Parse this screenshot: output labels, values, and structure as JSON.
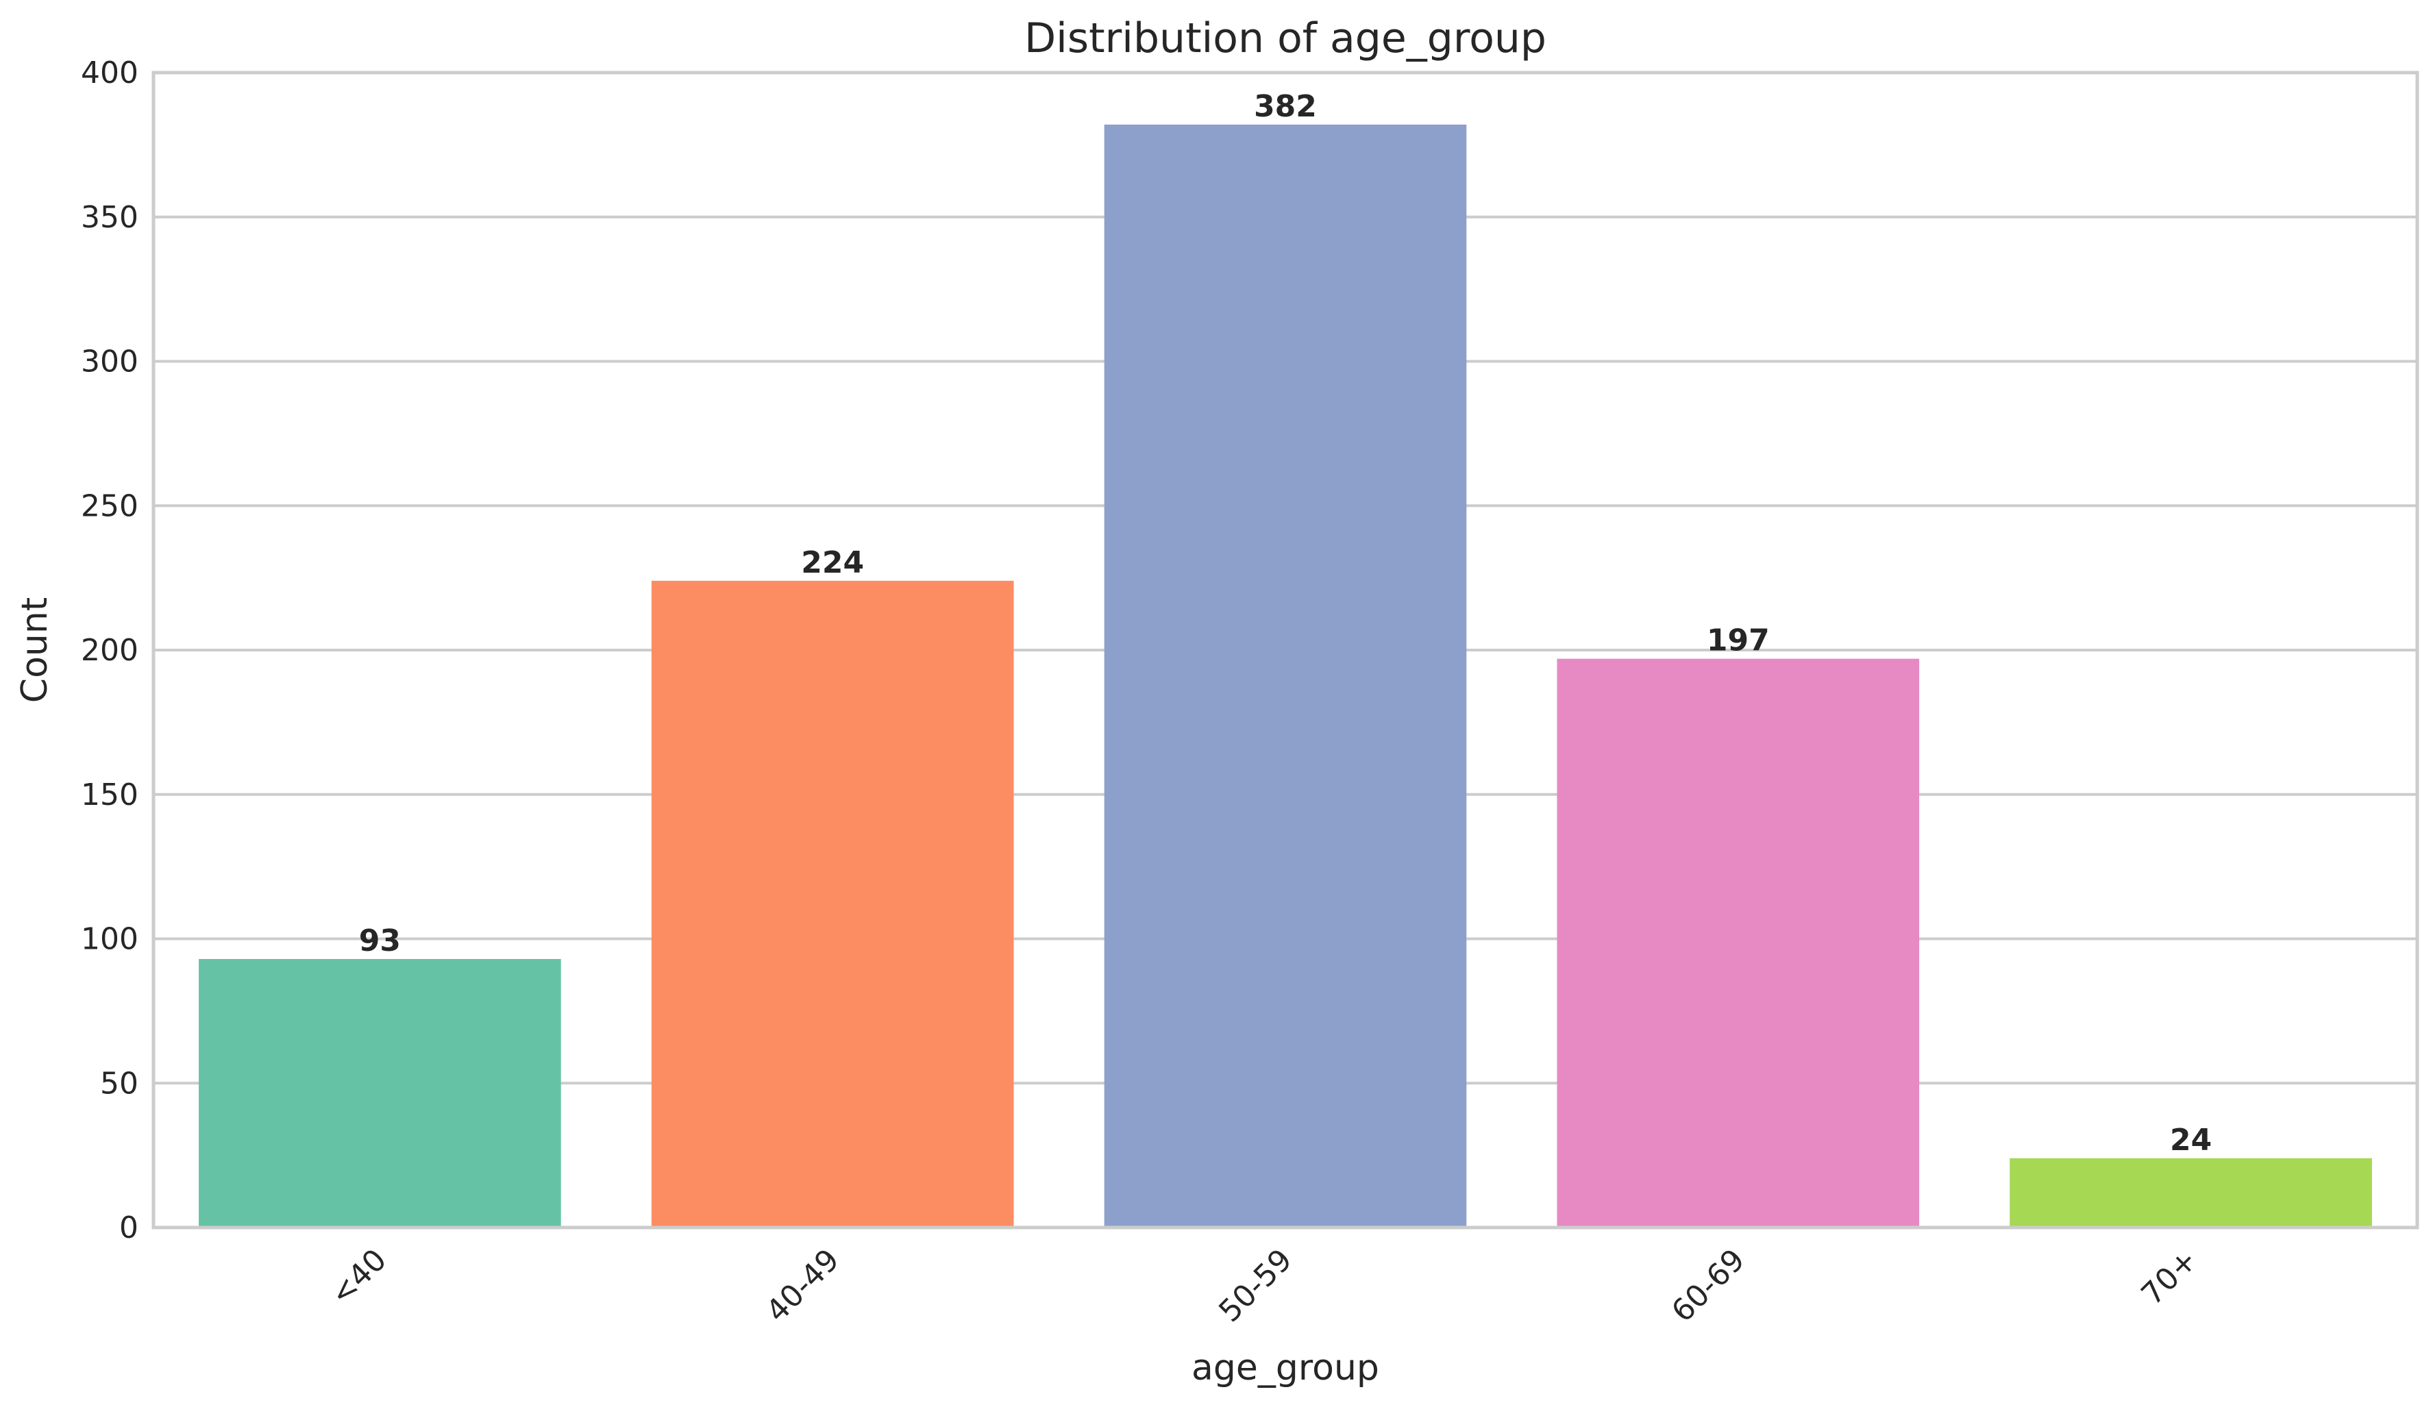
{
  "chart_data": {
    "type": "bar",
    "title": "Distribution of age_group",
    "xlabel": "age_group",
    "ylabel": "Count",
    "categories": [
      "<40",
      "40-49",
      "50-59",
      "60-69",
      "70+"
    ],
    "values": [
      93,
      224,
      382,
      197,
      24
    ],
    "data_labels": [
      "93",
      "224",
      "382",
      "197",
      "24"
    ],
    "colors": [
      "#66c2a5",
      "#fc8d62",
      "#8da0cb",
      "#e78ac3",
      "#a6d854"
    ],
    "ylim": [
      0,
      400
    ],
    "yticks": [
      0,
      50,
      100,
      150,
      200,
      250,
      300,
      350,
      400
    ],
    "ytick_labels": [
      "0",
      "50",
      "100",
      "150",
      "200",
      "250",
      "300",
      "350",
      "400"
    ],
    "grid": true,
    "xtick_rotation_deg": 45
  }
}
